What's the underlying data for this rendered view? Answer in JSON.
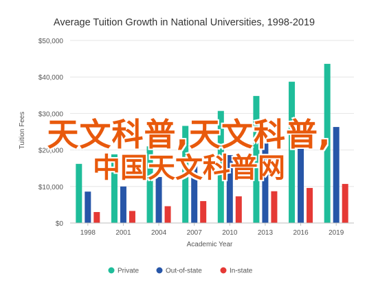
{
  "chart_data": {
    "type": "bar",
    "title": "Average Tuition Growth in National Universities, 1998-2019",
    "xlabel": "Academic Year",
    "ylabel": "Tuition Fees",
    "categories": [
      "1998",
      "2001",
      "2004",
      "2007",
      "2010",
      "2013",
      "2016",
      "2019"
    ],
    "ylim": [
      0,
      50000
    ],
    "yticks": [
      0,
      10000,
      20000,
      30000,
      40000,
      50000
    ],
    "ytick_labels": [
      "$0",
      "$10,000",
      "$20,000",
      "$30,000",
      "$40,000",
      "$50,000"
    ],
    "grid": true,
    "legend_position": "bottom",
    "series": [
      {
        "name": "Private",
        "color": "#1fbd9a",
        "values": [
          16200,
          18800,
          21000,
          26600,
          30700,
          34800,
          38700,
          43600
        ]
      },
      {
        "name": "Out-of-state",
        "color": "#2756a8",
        "values": [
          8600,
          10000,
          12600,
          15800,
          18600,
          21800,
          24700,
          26300
        ]
      },
      {
        "name": "In-state",
        "color": "#e53935",
        "values": [
          3000,
          3300,
          4600,
          6000,
          7300,
          8700,
          9600,
          10700
        ]
      }
    ]
  },
  "overlay": {
    "line1": "天文科普,天文科普,",
    "line2": "中国天文科普网"
  }
}
